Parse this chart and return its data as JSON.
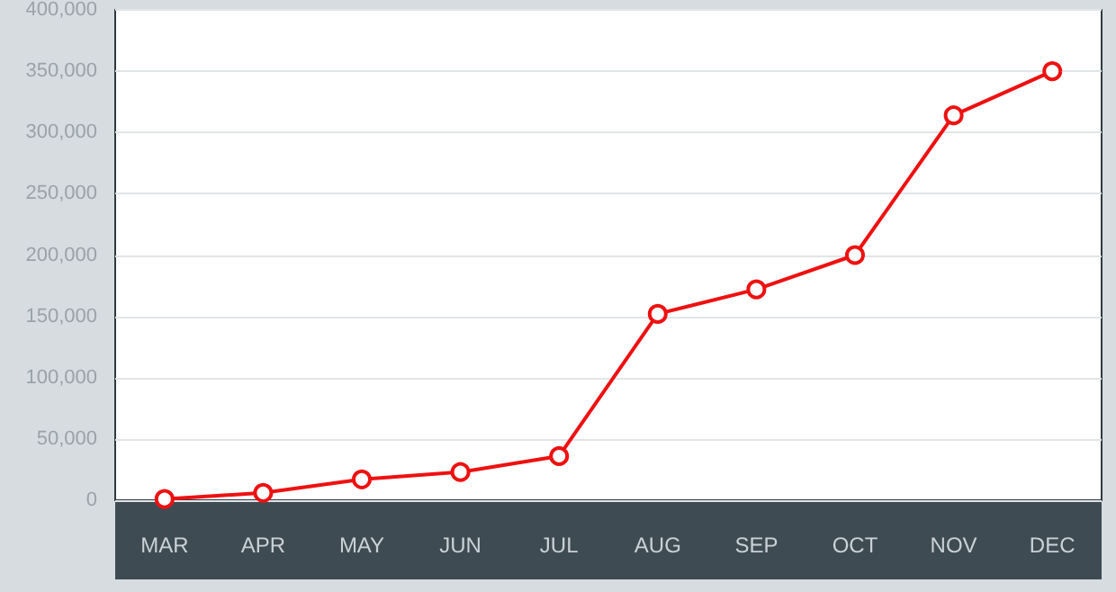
{
  "chart_data": {
    "type": "line",
    "categories": [
      "MAR",
      "APR",
      "MAY",
      "JUN",
      "JUL",
      "AUG",
      "SEP",
      "OCT",
      "NOV",
      "DEC"
    ],
    "series": [
      {
        "color": "#ee1111",
        "values": [
          1000,
          6000,
          17000,
          23000,
          36000,
          152000,
          172000,
          200000,
          314000,
          350000
        ]
      }
    ],
    "ylim": [
      0,
      400000
    ],
    "yticks": [
      0,
      {
        "value": 50000,
        "label": "50,000"
      },
      {
        "value": 100000,
        "label": "100,000"
      },
      {
        "value": 150000,
        "label": "150,000"
      },
      {
        "value": 200000,
        "label": "200,000"
      },
      {
        "value": 250000,
        "label": "250,000"
      },
      {
        "value": 300000,
        "label": "300,000"
      },
      {
        "value": 350000,
        "label": "350,000"
      },
      {
        "value": 400000,
        "label": "400,000"
      }
    ],
    "grid": "y",
    "marker": "circle",
    "line_style": "solid"
  }
}
